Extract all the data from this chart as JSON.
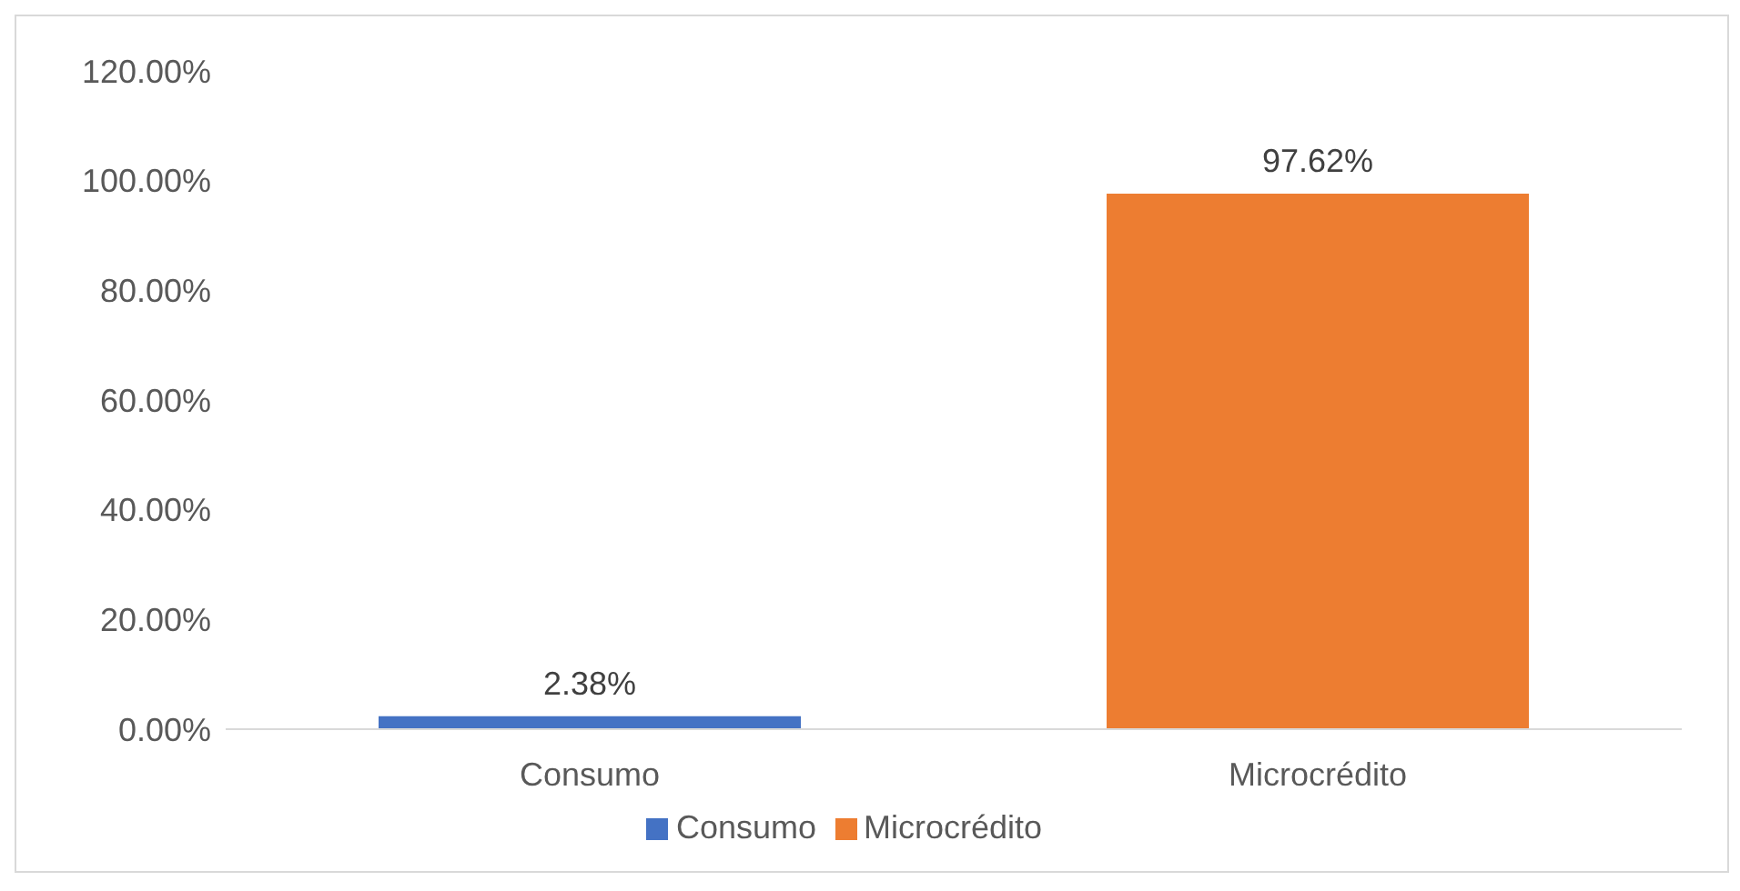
{
  "chart_data": {
    "type": "bar",
    "categories": [
      "Consumo",
      "Microcrédito"
    ],
    "series": [
      {
        "name": "Consumo",
        "color": "#4472c4",
        "values": [
          2.38,
          null
        ],
        "value_labels": [
          "2.38%",
          null
        ]
      },
      {
        "name": "Microcrédito",
        "color": "#ed7d31",
        "values": [
          null,
          97.62
        ],
        "value_labels": [
          null,
          "97.62%"
        ]
      }
    ],
    "ylim": [
      0,
      120
    ],
    "yticks": [
      {
        "value": 0,
        "label": "0.00%"
      },
      {
        "value": 20,
        "label": "20.00%"
      },
      {
        "value": 40,
        "label": "40.00%"
      },
      {
        "value": 60,
        "label": "60.00%"
      },
      {
        "value": 80,
        "label": "80.00%"
      },
      {
        "value": 100,
        "label": "100.00%"
      },
      {
        "value": 120,
        "label": "120.00%"
      }
    ],
    "grid": false,
    "legend": "bottom"
  }
}
